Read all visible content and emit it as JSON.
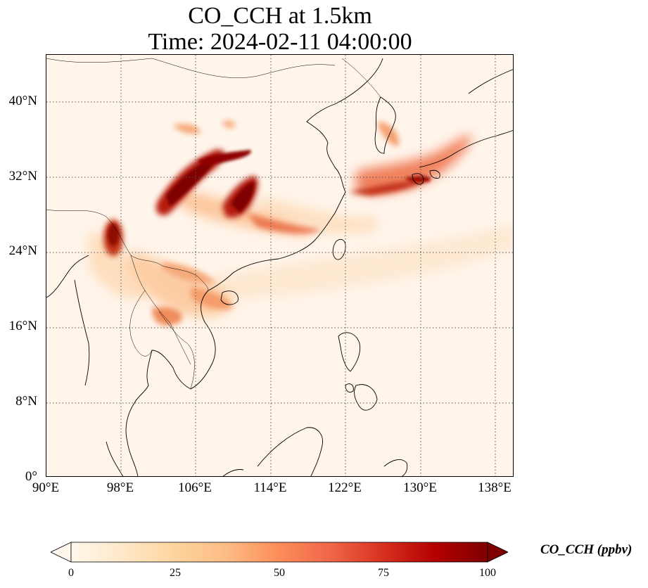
{
  "title": {
    "line1": "CO_CCH at 1.5km",
    "line2": "Time: 2024-02-11 04:00:00"
  },
  "map": {
    "extent": {
      "lon": [
        90,
        140
      ],
      "lat": [
        0,
        45
      ]
    },
    "gridlines": "dotted",
    "lat_ticks": [
      "0°",
      "8°N",
      "16°N",
      "24°N",
      "32°N",
      "40°N"
    ],
    "lon_ticks": [
      "90°E",
      "98°E",
      "106°E",
      "114°E",
      "122°E",
      "130°E",
      "138°E"
    ],
    "colormap": "OrRd",
    "background_color": "#fff5eb"
  },
  "colorbar": {
    "label": "CO_CCH (ppbv)",
    "ticks": [
      "0",
      "25",
      "50",
      "75",
      "100"
    ],
    "range": [
      0,
      100
    ],
    "extend": "both",
    "colors": [
      "#fff7ec",
      "#fee8c8",
      "#fdd49e",
      "#fdbb84",
      "#fc8d59",
      "#ef6548",
      "#d7301f",
      "#b30000",
      "#7f0000"
    ]
  }
}
